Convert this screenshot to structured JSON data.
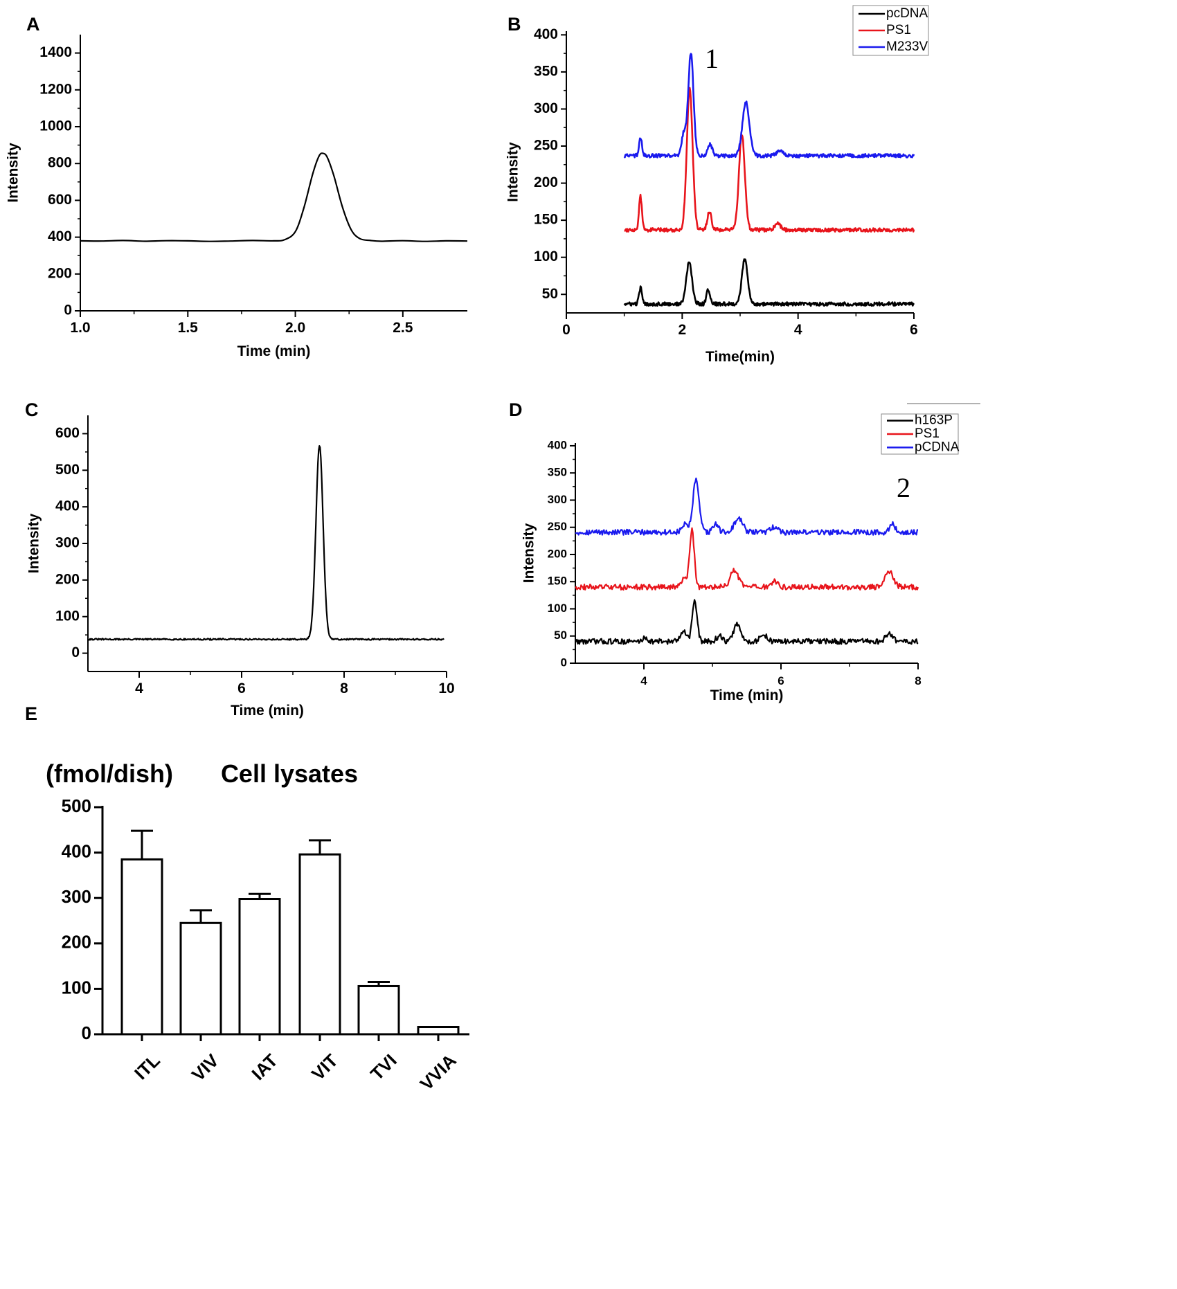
{
  "chart_data": [
    {
      "id": "A",
      "panel_label": "A",
      "type": "line",
      "xlabel": "Time (min)",
      "ylabel": "Intensity",
      "xlim": [
        1.0,
        2.8
      ],
      "ylim": [
        0,
        1500
      ],
      "xticks": [
        1.0,
        1.5,
        2.0,
        2.5
      ],
      "xtick_labels": [
        "1.0",
        "1.5",
        "2.0",
        "2.5"
      ],
      "yticks": [
        0,
        200,
        400,
        600,
        800,
        1000,
        1200,
        1400
      ],
      "ytick_labels": [
        "0",
        "200",
        "400",
        "600",
        "800",
        "1000",
        "1200",
        "1400"
      ],
      "series": [
        {
          "name": "trace",
          "color": "#000000",
          "baseline": 378,
          "x": [
            1.0,
            1.1,
            1.2,
            1.3,
            1.4,
            1.5,
            1.6,
            1.7,
            1.8,
            1.9,
            1.95,
            2.0,
            2.04,
            2.08,
            2.11,
            2.13,
            2.15,
            2.18,
            2.22,
            2.26,
            2.3,
            2.35,
            2.4,
            2.5,
            2.6,
            2.7,
            2.8
          ],
          "y": [
            380,
            379,
            382,
            378,
            381,
            380,
            377,
            379,
            382,
            380,
            386,
            430,
            560,
            740,
            840,
            855,
            830,
            730,
            560,
            440,
            392,
            382,
            378,
            381,
            377,
            380,
            379
          ]
        }
      ]
    },
    {
      "id": "B",
      "panel_label": "B",
      "type": "line",
      "xlabel": "Time(min)",
      "ylabel": "Intensity",
      "xlim": [
        0,
        6
      ],
      "ylim": [
        25,
        405
      ],
      "xticks": [
        0,
        2,
        4,
        6
      ],
      "xtick_labels": [
        "0",
        "2",
        "4",
        "6"
      ],
      "yticks": [
        50,
        100,
        150,
        200,
        250,
        300,
        350,
        400
      ],
      "ytick_labels": [
        "50",
        "100",
        "150",
        "200",
        "250",
        "300",
        "350",
        "400"
      ],
      "legend": [
        "pcDNA",
        "PS1",
        "M233V"
      ],
      "annotation": "1",
      "series": [
        {
          "name": "pcDNA",
          "color": "#000000",
          "baseline": 37,
          "peaks": [
            [
              1.28,
              22,
              0.025
            ],
            [
              2.12,
              56,
              0.05
            ],
            [
              2.45,
              20,
              0.03
            ],
            [
              3.08,
              60,
              0.05
            ]
          ]
        },
        {
          "name": "PS1",
          "color": "#e8141b",
          "baseline": 137,
          "peaks": [
            [
              1.28,
              45,
              0.025
            ],
            [
              2.13,
              190,
              0.05
            ],
            [
              2.47,
              25,
              0.035
            ],
            [
              3.03,
              130,
              0.05
            ],
            [
              3.65,
              8,
              0.05
            ]
          ]
        },
        {
          "name": "M233V",
          "color": "#1a1aee",
          "baseline": 237,
          "peaks": [
            [
              1.28,
              25,
              0.025
            ],
            [
              2.03,
              30,
              0.04
            ],
            [
              2.15,
              138,
              0.045
            ],
            [
              2.48,
              15,
              0.04
            ],
            [
              3.1,
              72,
              0.06
            ],
            [
              3.68,
              7,
              0.05
            ]
          ]
        }
      ]
    },
    {
      "id": "C",
      "panel_label": "C",
      "type": "line",
      "xlabel": "Time (min)",
      "ylabel": "Intensity",
      "xlim": [
        3,
        10
      ],
      "ylim": [
        -50,
        650
      ],
      "xticks": [
        4,
        6,
        8,
        10
      ],
      "xtick_labels": [
        "4",
        "6",
        "8",
        "10"
      ],
      "yticks": [
        0,
        100,
        200,
        300,
        400,
        500,
        600
      ],
      "ytick_labels": [
        "0",
        "100",
        "200",
        "300",
        "400",
        "500",
        "600"
      ],
      "series": [
        {
          "name": "trace",
          "color": "#000000",
          "baseline": 38,
          "peaks": [
            [
              7.52,
              530,
              0.07
            ]
          ]
        }
      ]
    },
    {
      "id": "D",
      "panel_label": "D",
      "type": "line",
      "xlabel": "Time (min)",
      "ylabel": "Intensity",
      "xlim": [
        3,
        8
      ],
      "ylim": [
        0,
        405
      ],
      "xticks": [
        4,
        6,
        8
      ],
      "xtick_labels": [
        "4",
        "6",
        "8"
      ],
      "yticks": [
        0,
        50,
        100,
        150,
        200,
        250,
        300,
        350,
        400
      ],
      "ytick_labels": [
        "0",
        "50",
        "100",
        "150",
        "200",
        "250",
        "300",
        "350",
        "400"
      ],
      "legend": [
        "h163P",
        "PS1",
        "pCDNA"
      ],
      "annotation": "2",
      "series": [
        {
          "name": "h163P",
          "color": "#000000",
          "baseline": 40,
          "peaks": [
            [
              4.02,
              8,
              0.03
            ],
            [
              4.58,
              22,
              0.04
            ],
            [
              4.74,
              75,
              0.035
            ],
            [
              5.1,
              10,
              0.04
            ],
            [
              5.36,
              32,
              0.05
            ],
            [
              5.75,
              12,
              0.05
            ],
            [
              7.58,
              15,
              0.05
            ]
          ]
        },
        {
          "name": "PS1",
          "color": "#e8141b",
          "baseline": 140,
          "peaks": [
            [
              4.58,
              15,
              0.04
            ],
            [
              4.7,
              105,
              0.035
            ],
            [
              5.32,
              30,
              0.06
            ],
            [
              5.9,
              10,
              0.05
            ],
            [
              7.58,
              30,
              0.06
            ]
          ]
        },
        {
          "name": "pCDNA",
          "color": "#1a1aee",
          "baseline": 241,
          "peaks": [
            [
              4.6,
              15,
              0.04
            ],
            [
              4.76,
              95,
              0.045
            ],
            [
              5.05,
              15,
              0.04
            ],
            [
              5.38,
              25,
              0.06
            ],
            [
              5.9,
              10,
              0.05
            ],
            [
              7.62,
              15,
              0.04
            ]
          ]
        }
      ]
    },
    {
      "id": "E",
      "panel_label": "E",
      "type": "bar",
      "title": "Cell lysates",
      "ylabel": "(fmol/dish)",
      "ylim": [
        0,
        500
      ],
      "yticks": [
        0,
        100,
        200,
        300,
        400,
        500
      ],
      "ytick_labels": [
        "0",
        "100",
        "200",
        "300",
        "400",
        "500"
      ],
      "categories": [
        "ITL",
        "VIV",
        "IAT",
        "VIT",
        "TVI",
        "VVIA"
      ],
      "values": [
        385,
        245,
        298,
        396,
        106,
        16
      ],
      "errors": [
        63,
        28,
        11,
        31,
        9,
        0
      ]
    }
  ]
}
